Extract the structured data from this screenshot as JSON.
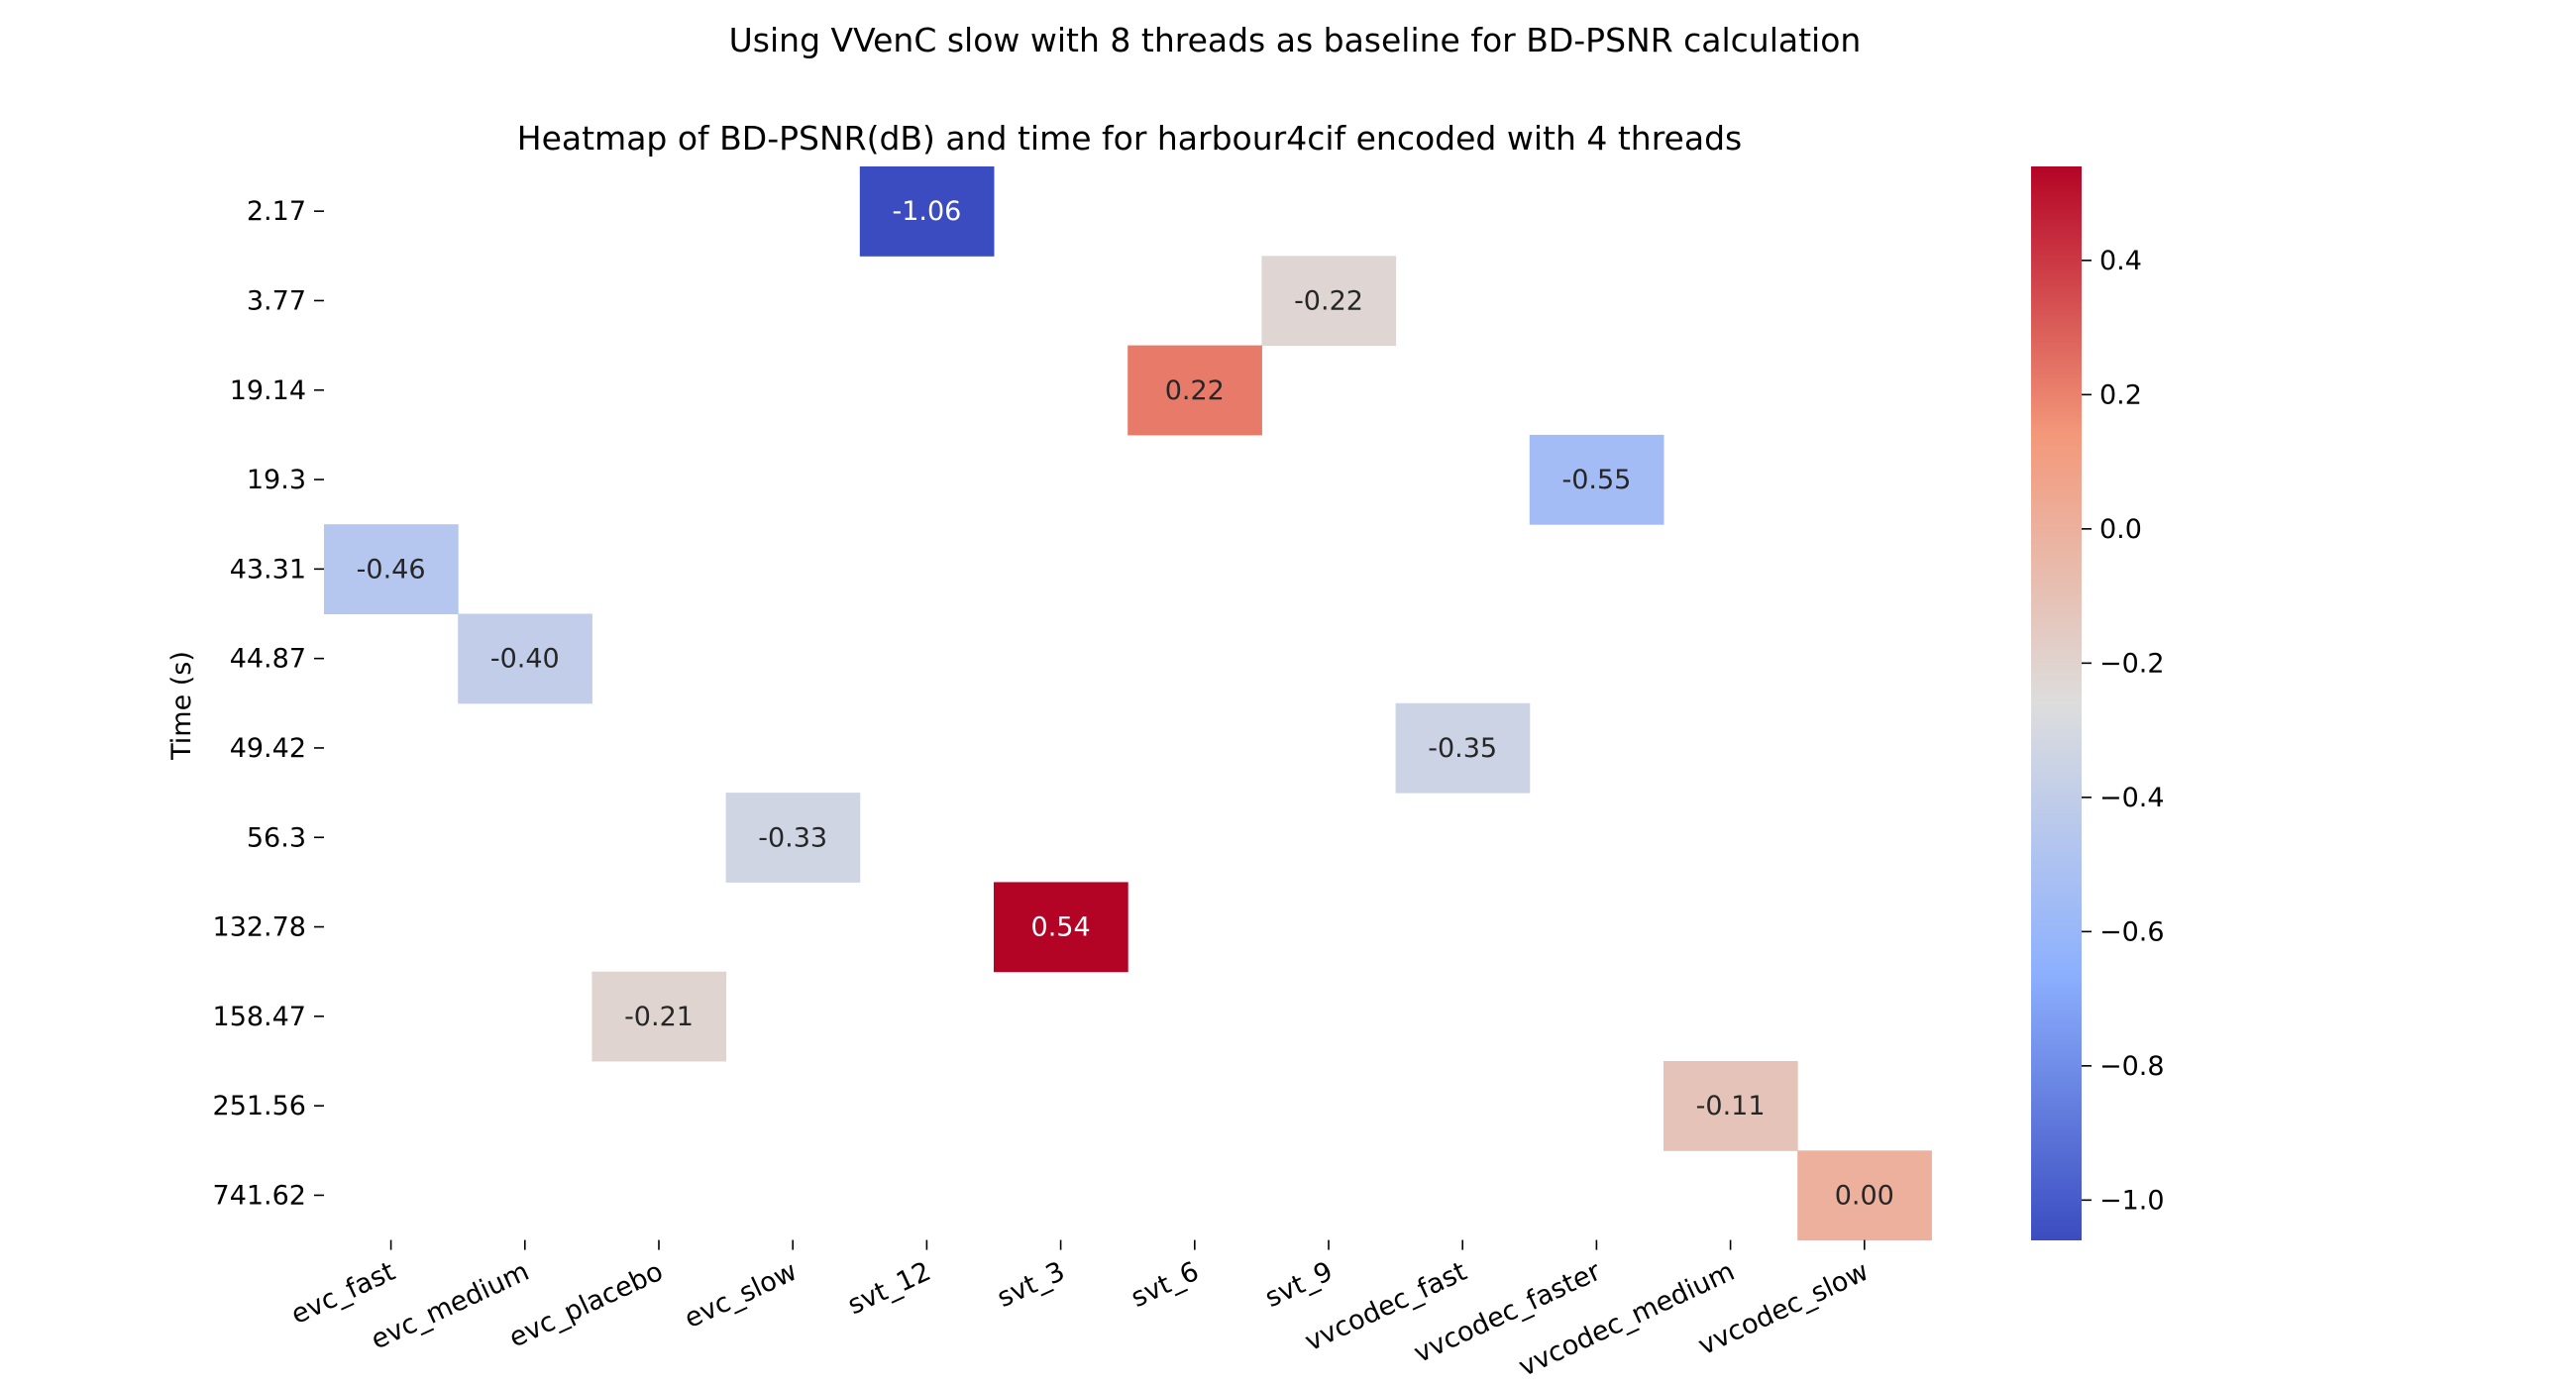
{
  "chart_data": {
    "type": "heatmap",
    "suptitle": "Using VVenC slow with 8 threads as baseline for BD-PSNR calculation",
    "title": "Heatmap of BD-PSNR(dB) and time for harbour4cif encoded with 4 threads",
    "xlabel": "",
    "ylabel": "Time (s)",
    "x_categories": [
      "evc_fast",
      "evc_medium",
      "evc_placebo",
      "evc_slow",
      "svt_12",
      "svt_3",
      "svt_6",
      "svt_9",
      "vvcodec_fast",
      "vvcodec_faster",
      "vvcodec_medium",
      "vvcodec_slow"
    ],
    "y_categories": [
      "2.17",
      "3.77",
      "19.14",
      "19.3",
      "43.31",
      "44.87",
      "49.42",
      "56.3",
      "132.78",
      "158.47",
      "251.56",
      "741.62"
    ],
    "cells": [
      {
        "x": "svt_12",
        "y": "2.17",
        "value": -1.06,
        "label": "-1.06"
      },
      {
        "x": "svt_9",
        "y": "3.77",
        "value": -0.22,
        "label": "-0.22"
      },
      {
        "x": "svt_6",
        "y": "19.14",
        "value": 0.22,
        "label": "0.22"
      },
      {
        "x": "vvcodec_faster",
        "y": "19.3",
        "value": -0.55,
        "label": "-0.55"
      },
      {
        "x": "evc_fast",
        "y": "43.31",
        "value": -0.46,
        "label": "-0.46"
      },
      {
        "x": "evc_medium",
        "y": "44.87",
        "value": -0.4,
        "label": "-0.40"
      },
      {
        "x": "vvcodec_fast",
        "y": "49.42",
        "value": -0.35,
        "label": "-0.35"
      },
      {
        "x": "evc_slow",
        "y": "56.3",
        "value": -0.33,
        "label": "-0.33"
      },
      {
        "x": "svt_3",
        "y": "132.78",
        "value": 0.54,
        "label": "0.54"
      },
      {
        "x": "evc_placebo",
        "y": "158.47",
        "value": -0.21,
        "label": "-0.21"
      },
      {
        "x": "vvcodec_medium",
        "y": "251.56",
        "value": -0.11,
        "label": "-0.11"
      },
      {
        "x": "vvcodec_slow",
        "y": "741.62",
        "value": 0.0,
        "label": "0.00"
      }
    ],
    "colormap": "coolwarm",
    "vmin": -1.06,
    "vmax": 0.54,
    "colorbar": {
      "ticks": [
        0.4,
        0.2,
        0.0,
        -0.2,
        -0.4,
        -0.6,
        -0.8,
        -1.0
      ],
      "tick_labels": [
        "0.4",
        "0.2",
        "0.0",
        "−0.2",
        "−0.4",
        "−0.6",
        "−0.8",
        "−1.0"
      ]
    },
    "grid": false,
    "legend": "colorbar right"
  }
}
